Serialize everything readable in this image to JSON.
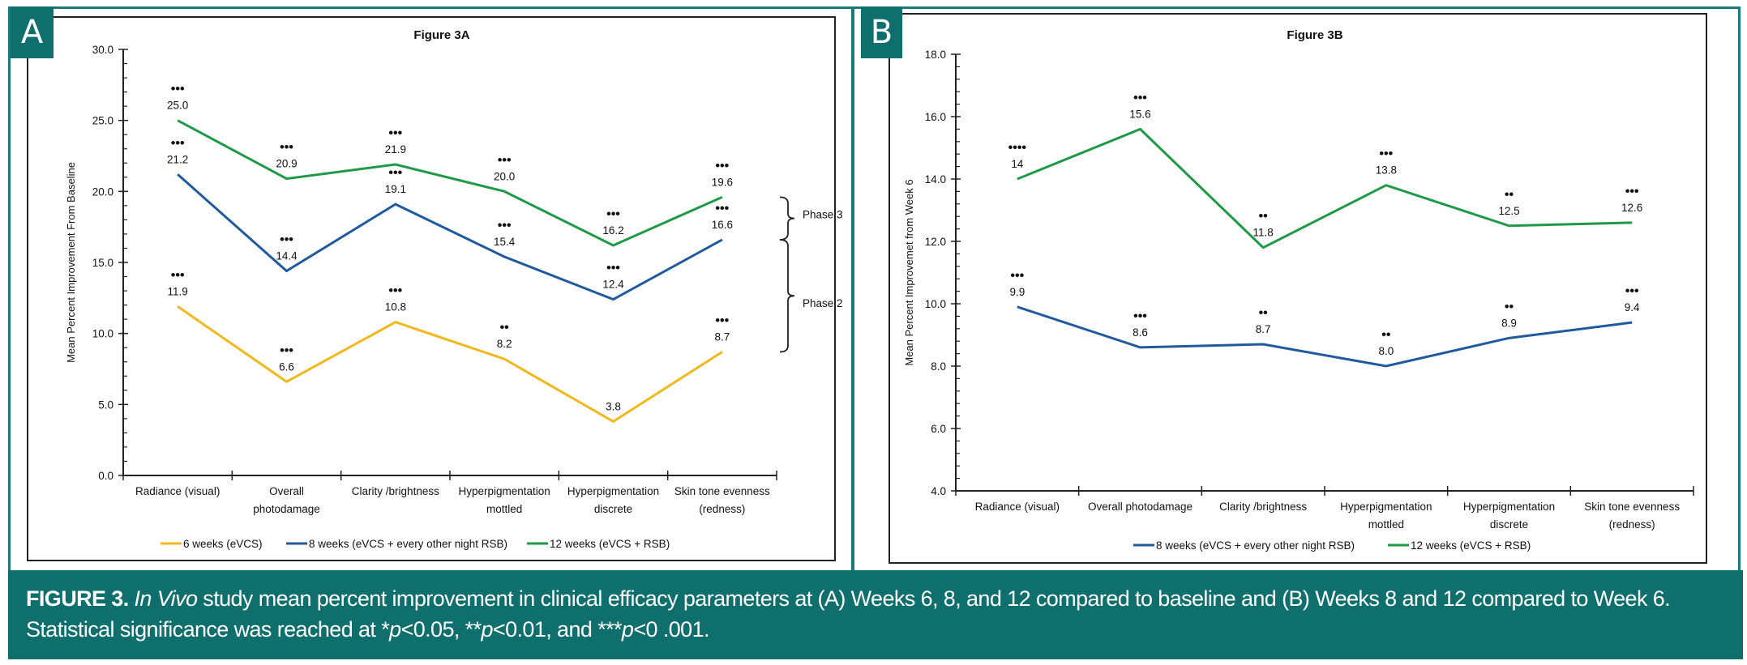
{
  "panels": {
    "A": {
      "label": "A"
    },
    "B": {
      "label": "B"
    }
  },
  "caption": {
    "figure_label": "FIGURE 3.",
    "italic_lead": "In Vivo",
    "text_part1": " study mean percent improvement in clinical efficacy parameters at (A) Weeks 6, 8, and 12 compared to baseline and (B) Weeks 8 and 12 compared to Week 6. Statistical significance was reached at *",
    "p1": "p",
    "text_part2": "<0.05, **",
    "p2": "p",
    "text_part3": "<0.01, and ***",
    "p3": "p",
    "text_part4": "<0 .001."
  },
  "colors": {
    "teal": "#0f6f6c",
    "yellow": "#f2b81b",
    "blue": "#1f5a9e",
    "green": "#1e9a47"
  },
  "chart_data": [
    {
      "type": "line",
      "title": "Figure 3A",
      "ylabel": "Mean Percent Improvement From Baseline",
      "xlabel": "",
      "ylim": [
        0,
        30
      ],
      "yticks": [
        "0.0",
        "5.0",
        "10.0",
        "15.0",
        "20.0",
        "25.0",
        "30.0"
      ],
      "categories": [
        [
          "Radiance (visual)"
        ],
        [
          "Overall",
          "photodamage"
        ],
        [
          "Clarity /brightness"
        ],
        [
          "Hyperpigmentation",
          "mottled"
        ],
        [
          "Hyperpigmentation",
          "discrete"
        ],
        [
          "Skin tone evenness",
          "(redness)"
        ]
      ],
      "legend_position": "bottom",
      "grid": false,
      "series": [
        {
          "name": "6 weeks (eVCS)",
          "color": "#f2b81b",
          "values": [
            11.9,
            6.6,
            10.8,
            8.2,
            3.8,
            8.7
          ],
          "labels": [
            "11.9",
            "6.6",
            "10.8",
            "8.2",
            "3.8",
            "8.7"
          ],
          "significance": [
            "***",
            "***",
            "***",
            "**",
            "",
            "***"
          ]
        },
        {
          "name": "8 weeks (eVCS + every other night RSB)",
          "color": "#1f5a9e",
          "values": [
            21.2,
            14.4,
            19.1,
            15.4,
            12.4,
            16.6
          ],
          "labels": [
            "21.2",
            "14.4",
            "19.1",
            "15.4",
            "12.4",
            "16.6"
          ],
          "significance": [
            "***",
            "***",
            "***",
            "***",
            "***",
            "***"
          ]
        },
        {
          "name": "12 weeks (eVCS + RSB)",
          "color": "#1e9a47",
          "values": [
            25.0,
            20.9,
            21.9,
            20.0,
            16.2,
            19.6
          ],
          "labels": [
            "25.0",
            "20.9",
            "21.9",
            "20.0",
            "16.2",
            "19.6"
          ],
          "significance": [
            "***",
            "***",
            "***",
            "***",
            "***",
            "***"
          ]
        }
      ],
      "annotations": [
        {
          "text": "Phase 3",
          "spans": [
            16.6,
            19.6
          ]
        },
        {
          "text": "Phase 2",
          "spans": [
            8.7,
            16.6
          ]
        }
      ]
    },
    {
      "type": "line",
      "title": "Figure 3B",
      "ylabel": "Mean Percent Improvemet from Week 6",
      "xlabel": "",
      "ylim": [
        4,
        18
      ],
      "yticks": [
        "4.0",
        "6.0",
        "8.0",
        "10.0",
        "12.0",
        "14.0",
        "16.0",
        "18.0"
      ],
      "categories": [
        [
          "Radiance (visual)"
        ],
        [
          "Overall  photodamage"
        ],
        [
          "Clarity /brightness"
        ],
        [
          "Hyperpigmentation",
          "mottled"
        ],
        [
          "Hyperpigmentation",
          "discrete"
        ],
        [
          "Skin tone evenness",
          "(redness)"
        ]
      ],
      "legend_position": "bottom",
      "grid": false,
      "series": [
        {
          "name": "8 weeks (eVCS + every other night RSB)",
          "color": "#1f5a9e",
          "values": [
            9.9,
            8.6,
            8.7,
            8.0,
            8.9,
            9.4
          ],
          "labels": [
            "9.9",
            "8.6",
            "8.7",
            "8.0",
            "8.9",
            "9.4"
          ],
          "significance": [
            "***",
            "***",
            "**",
            "**",
            "**",
            "***"
          ]
        },
        {
          "name": "12 weeks  (eVCS + RSB)",
          "color": "#1e9a47",
          "values": [
            14.0,
            15.6,
            11.8,
            13.8,
            12.5,
            12.6
          ],
          "labels": [
            "14",
            "15.6",
            "11.8",
            "13.8",
            "12.5",
            "12.6"
          ],
          "significance": [
            "****",
            "***",
            "**",
            "***",
            "**",
            "***"
          ]
        }
      ]
    }
  ]
}
